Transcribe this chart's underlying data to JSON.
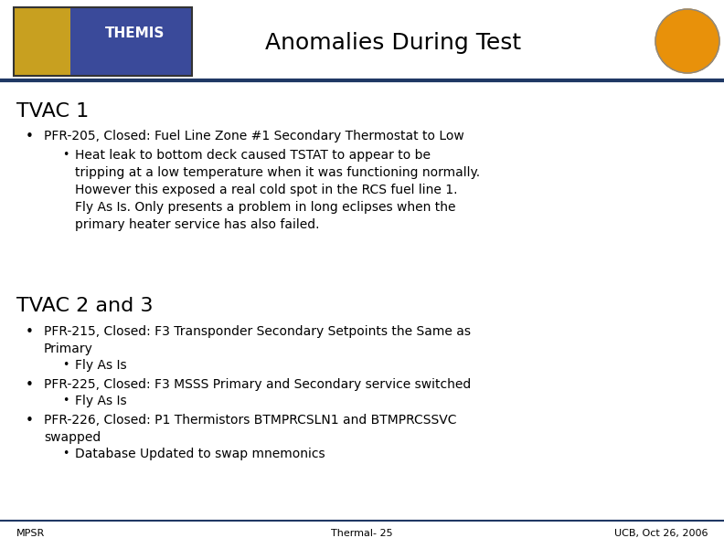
{
  "title": "Anomalies During Test",
  "bg_color": "#ffffff",
  "header_line_color": "#1F3864",
  "footer_line_color": "#1F3864",
  "section1_heading": "TVAC 1",
  "section2_heading": "TVAC 2 and 3",
  "bullet1_main": "PFR-205, Closed: Fuel Line Zone #1 Secondary Thermostat to Low",
  "bullet1_sub": "Heat leak to bottom deck caused TSTAT to appear to be\ntripping at a low temperature when it was functioning normally.\nHowever this exposed a real cold spot in the RCS fuel line 1.\nFly As Is. Only presents a problem in long eclipses when the\nprimary heater service has also failed.",
  "bullet2_main": "PFR-215, Closed: F3 Transponder Secondary Setpoints the Same as\nPrimary",
  "bullet2_sub": "Fly As Is",
  "bullet3_main": "PFR-225, Closed: F3 MSSS Primary and Secondary service switched",
  "bullet3_sub": "Fly As Is",
  "bullet4_main": "PFR-226, Closed: P1 Thermistors BTMPRCSLN1 and BTMPRCSSVC\nswapped",
  "bullet4_sub": "Database Updated to swap mnemonics",
  "footer_left": "MPSR",
  "footer_center": "Thermal- 25",
  "footer_right": "UCB, Oct 26, 2006",
  "title_fontsize": 18,
  "section_fontsize": 16,
  "body_fontsize": 10,
  "footer_fontsize": 8,
  "heading_color": "#000000",
  "title_color": "#000000",
  "body_color": "#000000",
  "footer_color": "#000000",
  "logo_left_color": "#C8A020",
  "logo_right_color": "#3A4A9A",
  "logo_border_color": "#333333",
  "athena_color": "#E8910A"
}
